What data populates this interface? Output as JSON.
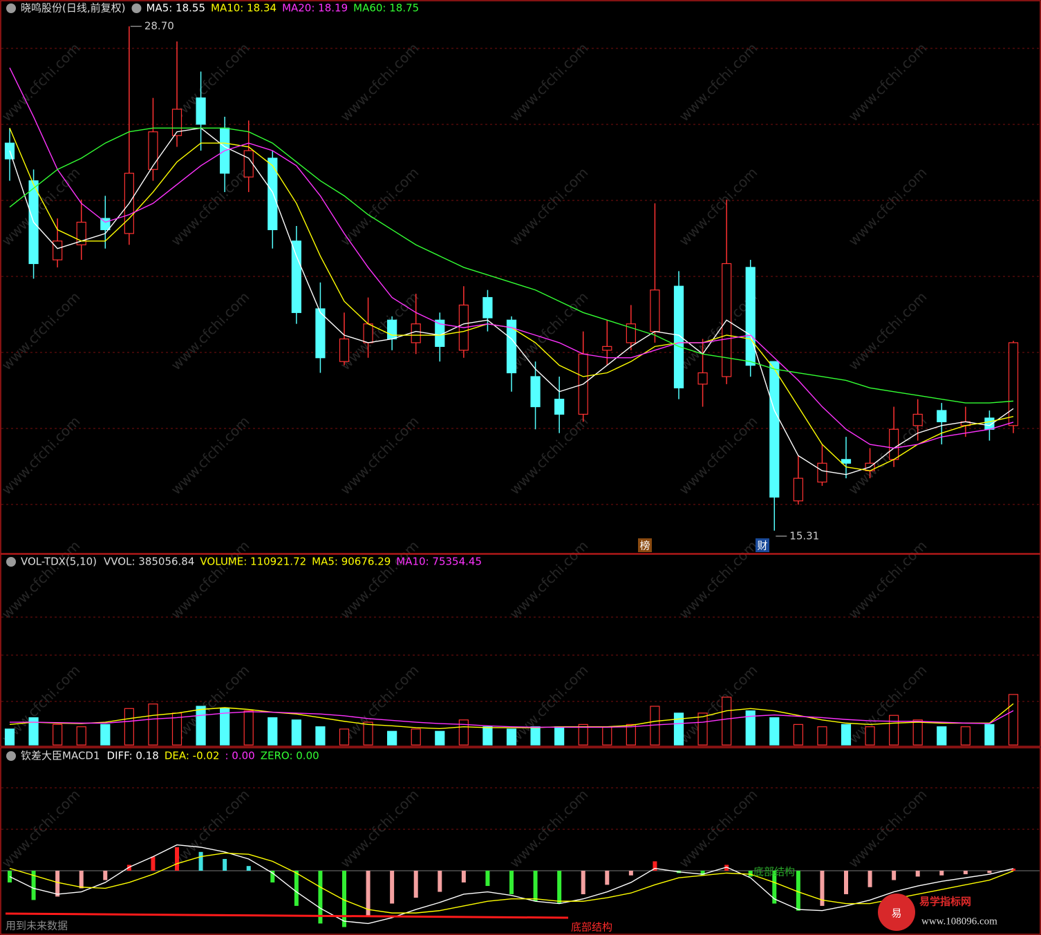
{
  "chart_data": [
    {
      "type": "candlestick",
      "title": "晓鸣股份(日线,前复权)",
      "legend": [
        {
          "text": "MA5: 18.55",
          "color": "#ffffff"
        },
        {
          "text": "MA10: 18.34",
          "color": "#ffff00"
        },
        {
          "text": "MA20: 18.19",
          "color": "#ff33ff"
        },
        {
          "text": "MA60: 18.75",
          "color": "#33ff33"
        }
      ],
      "open": [
        25.6,
        24.6,
        22.5,
        22.9,
        23.6,
        23.2,
        24.9,
        25.8,
        26.8,
        26.0,
        24.7,
        25.2,
        23.0,
        21.2,
        19.8,
        20.3,
        20.9,
        20.3,
        20.9,
        20.1,
        21.5,
        20.9,
        19.4,
        18.8,
        18.4,
        20.1,
        20.3,
        20.6,
        21.8,
        19.2,
        19.4,
        22.3,
        19.8,
        16.1,
        16.6,
        17.2,
        16.9,
        17.2,
        18.1,
        18.5,
        18.1,
        18.3,
        18.1
      ],
      "high": [
        26.0,
        24.9,
        23.6,
        24.1,
        24.2,
        28.7,
        26.8,
        28.3,
        27.5,
        26.3,
        26.2,
        25.4,
        23.4,
        21.9,
        21.1,
        21.5,
        21.0,
        21.6,
        21.1,
        21.8,
        21.7,
        21.0,
        19.8,
        19.4,
        20.6,
        20.9,
        21.3,
        24.0,
        22.2,
        20.4,
        24.1,
        22.5,
        19.8,
        17.3,
        17.6,
        17.8,
        17.5,
        18.6,
        18.8,
        18.7,
        18.6,
        18.5,
        20.35
      ],
      "low": [
        24.6,
        22.0,
        22.3,
        22.5,
        22.8,
        22.9,
        24.6,
        25.5,
        25.4,
        24.3,
        24.3,
        22.8,
        20.8,
        19.5,
        19.7,
        19.9,
        20.1,
        20.0,
        19.8,
        19.9,
        20.6,
        19.0,
        18.0,
        17.9,
        18.2,
        19.7,
        20.1,
        20.3,
        18.8,
        18.6,
        19.2,
        19.4,
        15.31,
        16.0,
        16.5,
        16.7,
        16.7,
        17.0,
        17.7,
        17.6,
        17.8,
        17.7,
        17.9
      ],
      "close": [
        25.18,
        22.4,
        23.0,
        23.5,
        23.3,
        24.8,
        25.9,
        26.5,
        26.1,
        24.8,
        25.4,
        23.3,
        21.1,
        19.9,
        20.4,
        20.8,
        20.4,
        20.8,
        20.2,
        21.3,
        20.96,
        19.5,
        18.6,
        18.4,
        20.0,
        20.2,
        20.8,
        21.7,
        19.1,
        19.5,
        22.4,
        19.7,
        16.2,
        16.7,
        17.1,
        17.1,
        17.1,
        18.0,
        18.4,
        18.2,
        18.2,
        18.0,
        20.3
      ],
      "up_color": "#ff3232",
      "down_color": "#54ffff",
      "ma": [
        {
          "color": "#ffffff",
          "values": [
            25.4,
            23.5,
            22.8,
            23.0,
            23.2,
            24.0,
            25.0,
            25.9,
            26.0,
            25.5,
            25.2,
            24.3,
            22.6,
            21.1,
            20.5,
            20.3,
            20.4,
            20.6,
            20.5,
            20.8,
            20.9,
            20.4,
            19.6,
            19.0,
            19.2,
            19.7,
            20.2,
            20.6,
            20.5,
            20.0,
            20.9,
            20.5,
            18.5,
            17.3,
            16.9,
            16.8,
            17.0,
            17.5,
            17.9,
            18.1,
            18.2,
            18.1,
            18.55
          ]
        },
        {
          "color": "#ffff00",
          "values": [
            26.0,
            24.5,
            23.3,
            23.0,
            23.0,
            23.6,
            24.3,
            25.1,
            25.6,
            25.6,
            25.5,
            25.0,
            24.0,
            22.6,
            21.4,
            20.8,
            20.5,
            20.5,
            20.5,
            20.6,
            20.8,
            20.7,
            20.3,
            19.7,
            19.4,
            19.5,
            19.8,
            20.2,
            20.3,
            20.3,
            20.5,
            20.4,
            19.6,
            18.6,
            17.6,
            17.0,
            16.9,
            17.2,
            17.6,
            17.9,
            18.1,
            18.2,
            18.34
          ]
        },
        {
          "color": "#ff33ff",
          "values": [
            27.6,
            26.3,
            24.9,
            24.0,
            23.5,
            23.7,
            24.0,
            24.5,
            25.0,
            25.4,
            25.6,
            25.4,
            25.0,
            24.2,
            23.2,
            22.3,
            21.5,
            21.1,
            20.8,
            20.7,
            20.8,
            20.7,
            20.5,
            20.3,
            20.0,
            19.9,
            19.9,
            20.1,
            20.3,
            20.3,
            20.4,
            20.5,
            19.9,
            19.3,
            18.6,
            18.0,
            17.6,
            17.5,
            17.6,
            17.8,
            17.9,
            18.0,
            18.19
          ]
        },
        {
          "color": "#33ff33",
          "values": [
            23.9,
            24.4,
            24.9,
            25.2,
            25.6,
            25.9,
            26.0,
            26.0,
            26.0,
            26.0,
            25.9,
            25.6,
            25.1,
            24.6,
            24.2,
            23.7,
            23.3,
            22.9,
            22.6,
            22.3,
            22.1,
            21.9,
            21.7,
            21.4,
            21.1,
            20.9,
            20.7,
            20.5,
            20.2,
            20.0,
            19.9,
            19.8,
            19.6,
            19.5,
            19.4,
            19.3,
            19.1,
            19.0,
            18.9,
            18.8,
            18.7,
            18.7,
            18.75
          ]
        }
      ],
      "ylim": [
        14.72,
        29.4
      ],
      "high_label": "28.70",
      "low_label": "15.31",
      "markers": [
        "榜",
        "财"
      ]
    },
    {
      "type": "volume",
      "title": "VOL-TDX(5,10)",
      "legend": [
        {
          "text": "VVOL: 385056.84",
          "color": "#dddddd"
        },
        {
          "text": "VOLUME: 110921.72",
          "color": "#ffff00"
        },
        {
          "text": "MA5: 90676.29",
          "color": "#ffff00"
        },
        {
          "text": "MA10: 75354.45",
          "color": "#ff33ff"
        }
      ],
      "values": [
        35000,
        60000,
        45000,
        40000,
        45000,
        80000,
        90000,
        70000,
        85000,
        80000,
        75000,
        60000,
        55000,
        40000,
        35000,
        50000,
        30000,
        35000,
        30000,
        55000,
        40000,
        35000,
        40000,
        40000,
        45000,
        40000,
        45000,
        85000,
        70000,
        70000,
        105000,
        75000,
        60000,
        45000,
        40000,
        45000,
        40000,
        65000,
        55000,
        40000,
        40000,
        45000,
        110921.72
      ],
      "ma": [
        {
          "color": "#ffff00",
          "values": [
            45000,
            50000,
            48000,
            47000,
            50000,
            58000,
            65000,
            70000,
            78000,
            82000,
            78000,
            72000,
            68000,
            60000,
            52000,
            45000,
            42000,
            38000,
            36000,
            40000,
            38000,
            38000,
            38000,
            40000,
            40000,
            40000,
            43000,
            52000,
            57000,
            62000,
            75000,
            80000,
            75000,
            65000,
            55000,
            48000,
            45000,
            48000,
            50000,
            48000,
            48000,
            48000,
            90676.29
          ]
        },
        {
          "color": "#ff33ff",
          "values": [
            50000,
            50000,
            49000,
            48000,
            48000,
            52000,
            57000,
            60000,
            65000,
            70000,
            73000,
            72000,
            70000,
            68000,
            64000,
            58000,
            54000,
            50000,
            47000,
            45000,
            42000,
            40000,
            39000,
            39000,
            39000,
            39000,
            40000,
            44000,
            47000,
            50000,
            57000,
            63000,
            66000,
            63000,
            60000,
            56000,
            53000,
            52000,
            52000,
            50000,
            48000,
            47000,
            75354.45
          ]
        }
      ],
      "ylim": [
        0,
        416000
      ]
    },
    {
      "type": "macd",
      "title": "钦差大臣MACD1",
      "legend": [
        {
          "text": "DIFF: 0.18",
          "color": "#ffffff"
        },
        {
          "text": "DEA: -0.02",
          "color": "#ffff00"
        },
        {
          "text": ": 0.00",
          "color": "#ff33ff"
        },
        {
          "text": "ZERO: 0.00",
          "color": "#33ff33"
        }
      ],
      "histogram": [
        -1.0,
        -2.5,
        -2.2,
        -1.5,
        -0.8,
        0.5,
        1.2,
        2.0,
        1.6,
        1.0,
        0.4,
        -1.0,
        -3.0,
        -4.5,
        -4.8,
        -3.8,
        -2.8,
        -2.3,
        -1.8,
        -1.0,
        -1.3,
        -2.0,
        -2.6,
        -2.8,
        -2.0,
        -1.2,
        -0.4,
        0.8,
        -0.2,
        -0.4,
        0.5,
        -0.5,
        -2.8,
        -3.4,
        -3.0,
        -2.0,
        -1.4,
        -0.8,
        -0.5,
        -0.4,
        -0.3,
        -0.2,
        0.18
      ],
      "diff": [
        -0.5,
        -1.5,
        -2.0,
        -1.8,
        -1.0,
        0.3,
        1.2,
        2.2,
        2.0,
        1.6,
        1.0,
        -0.2,
        -1.8,
        -3.2,
        -4.3,
        -4.5,
        -4.0,
        -3.3,
        -2.7,
        -2.0,
        -1.8,
        -2.1,
        -2.6,
        -2.8,
        -2.4,
        -1.8,
        -1.0,
        0.2,
        -0.1,
        -0.3,
        0.3,
        -0.6,
        -2.4,
        -3.3,
        -3.4,
        -3.0,
        -2.5,
        -1.8,
        -1.3,
        -0.9,
        -0.6,
        -0.3,
        0.18
      ],
      "dea": [
        0.2,
        -0.4,
        -1.0,
        -1.4,
        -1.5,
        -1.0,
        -0.3,
        0.6,
        1.2,
        1.5,
        1.4,
        0.8,
        -0.2,
        -1.4,
        -2.5,
        -3.3,
        -3.6,
        -3.6,
        -3.4,
        -3.0,
        -2.6,
        -2.4,
        -2.4,
        -2.6,
        -2.6,
        -2.3,
        -1.9,
        -1.2,
        -0.6,
        -0.4,
        -0.2,
        -0.3,
        -1.0,
        -1.8,
        -2.5,
        -2.8,
        -2.8,
        -2.4,
        -2.0,
        -1.6,
        -1.2,
        -0.8,
        -0.02
      ],
      "diff_color": "#ffffff",
      "dea_color": "#ffff00",
      "ylim": [
        -5.3,
        10.3
      ],
      "annotations": [
        "底部结构",
        "用到未来数据",
        "底部结构"
      ]
    }
  ],
  "watermark": "www.cfchi.com",
  "logo": {
    "icon": "易",
    "name": "易学指标网",
    "url": "www.108096.com"
  }
}
